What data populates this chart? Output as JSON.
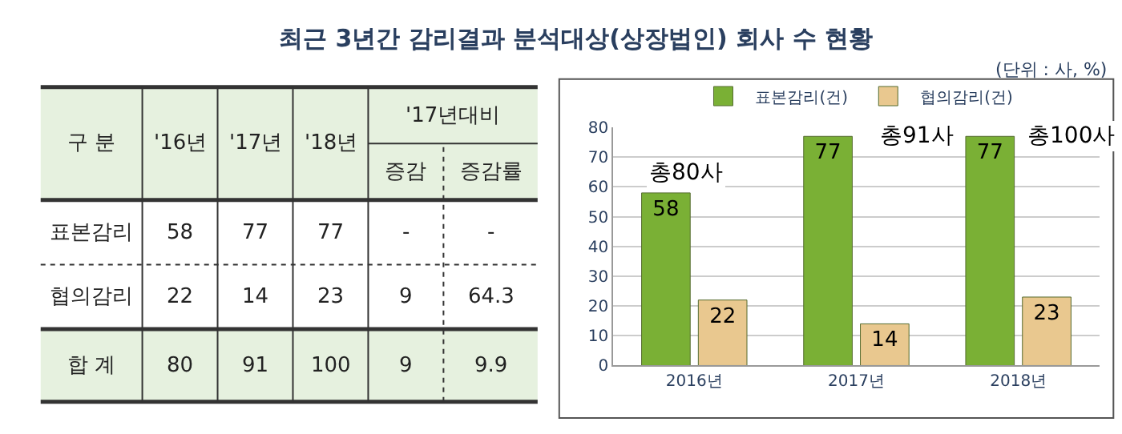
{
  "chart_data": [
    {
      "type": "other",
      "title": "최근 3년간 감리결과 분석대상(상장법인) 회사 수 현황",
      "subtitle": "(단위 : 사, %)",
      "annotations": [
        "구 분",
        "'16년",
        "'17년",
        "'18년",
        "'17년대비",
        "증감",
        "증감률",
        "표본감리",
        "58",
        "77",
        "77",
        "-",
        "-",
        "협의감리",
        "22",
        "14",
        "23",
        "9",
        "64.3",
        "합 계",
        "80",
        "91",
        "100",
        "9",
        "9.9"
      ]
    },
    {
      "type": "bar",
      "categories": [
        "2016년",
        "2017년",
        "2018년"
      ],
      "series": [
        {
          "name": "표본감리(건)",
          "color": "#7ab035",
          "values": [
            58,
            77,
            77
          ]
        },
        {
          "name": "협의감리(건)",
          "color": "#e9c88f",
          "values": [
            22,
            14,
            23
          ]
        }
      ],
      "ylim": [
        0,
        80
      ],
      "yticks": [
        0,
        10,
        20,
        30,
        40,
        50,
        60,
        70,
        80
      ],
      "grid": "y",
      "legend": "top",
      "data_labels": true,
      "annotations": [
        {
          "text": "총80사",
          "x": "2016년",
          "y": 58
        },
        {
          "text": "총91사",
          "x": "2017년",
          "y": 77
        },
        {
          "text": "총100사",
          "x": "2018년",
          "y": 77
        }
      ]
    }
  ]
}
